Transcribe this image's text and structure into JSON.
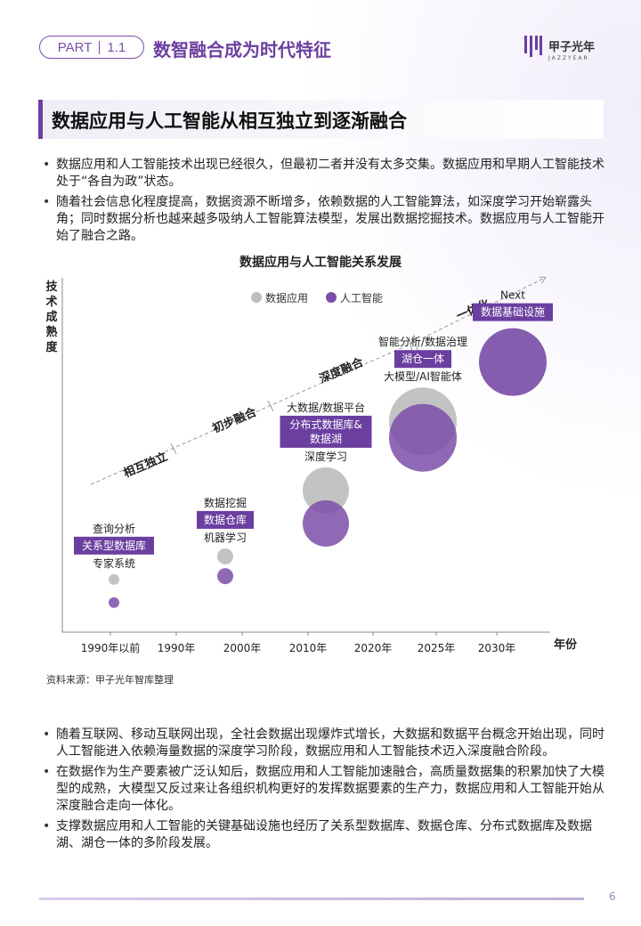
{
  "header": {
    "part_label": "PART",
    "part_number": "1.1",
    "title": "数智融合成为时代特征",
    "brand_name": "甲子光年",
    "brand_sub": "JAZZYEAR"
  },
  "section": {
    "title": "数据应用与人工智能从相互独立到逐渐融合"
  },
  "intro_bullets": [
    "数据应用和人工智能技术出现已经很久，但最初二者并没有太多交集。数据应用和早期人工智能技术处于“各自为政”状态。",
    "随着社会信息化程度提高，数据资源不断增多，依赖数据的人工智能算法，如深度学习开始崭露头角；同时数据分析也越来越多吸纳人工智能算法模型，发展出数据挖掘技术。数据应用与人工智能开始了融合之路。"
  ],
  "chart_data": {
    "type": "scatter",
    "title": "数据应用与人工智能关系发展",
    "ylabel": "技术成熟度",
    "xlabel": "年份",
    "legend": {
      "placement": "top-center",
      "items": [
        "数据应用",
        "人工智能"
      ]
    },
    "colors": {
      "data_app": "#bdbdbd",
      "ai": "#7b4fa8",
      "label_box": "#6b3fa0",
      "axis": "#888888"
    },
    "x_ticks": [
      "1990年以前",
      "1990年",
      "2000年",
      "2010年",
      "2020年",
      "2025年",
      "2030年"
    ],
    "stages": [
      "相互独立",
      "初步融合",
      "深度融合",
      "一体化"
    ],
    "points": [
      {
        "period": "1990年以前",
        "top": "查询分析",
        "box": "关系型数据库",
        "bottom": "专家系统",
        "data_app_maturity": 1.6,
        "ai_maturity": 0.9,
        "size": 1
      },
      {
        "period": "2000年",
        "top": "数据挖掘",
        "box": "数据仓库",
        "bottom": "机器学习",
        "data_app_maturity": 2.3,
        "ai_maturity": 1.7,
        "size": 2
      },
      {
        "period": "2010年",
        "top": "大数据/数据平台",
        "box": "分布式数据库&数据湖",
        "bottom": "深度学习",
        "data_app_maturity": 4.3,
        "ai_maturity": 3.3,
        "size": 3
      },
      {
        "period": "2025年",
        "top": "智能分析/数据治理",
        "box": "湖仓一体",
        "bottom": "大模型/AI智能体",
        "data_app_maturity": 6.4,
        "ai_maturity": 5.9,
        "size": 4
      },
      {
        "period": "2030年",
        "top": "Next",
        "box": "数据基础设施",
        "bottom": "",
        "data_app_maturity": 8.2,
        "ai_maturity": 8.2,
        "size": 4
      }
    ]
  },
  "source": "资料来源：甲子光年智库整理",
  "outro_bullets": [
    "随着互联网、移动互联网出现，全社会数据出现爆炸式增长，大数据和数据平台概念开始出现，同时人工智能进入依赖海量数据的深度学习阶段，数据应用和人工智能技术迈入深度融合阶段。",
    "在数据作为生产要素被广泛认知后，数据应用和人工智能加速融合，高质量数据集的积累加快了大模型的成熟，大模型又反过来让各组织机构更好的发挥数据要素的生产力，数据应用和人工智能开始从深度融合走向一体化。",
    "支撑数据应用和人工智能的关键基础设施也经历了关系型数据库、数据仓库、分布式数据库及数据湖、湖仓一体的多阶段发展。"
  ],
  "page_number": "6"
}
